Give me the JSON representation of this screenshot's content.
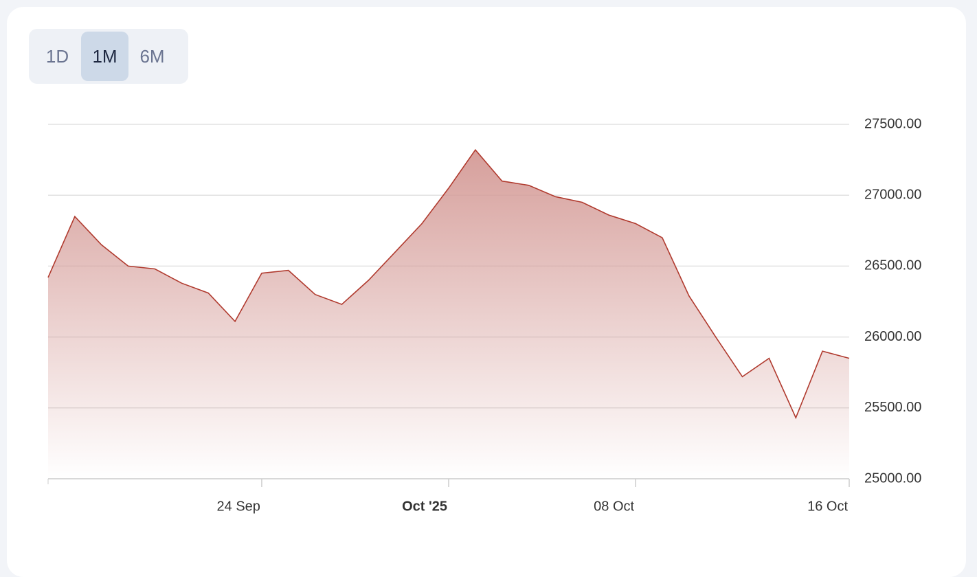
{
  "controls": {
    "options": [
      "1D",
      "1M",
      "6M"
    ],
    "selected": 1
  },
  "chart_data": {
    "type": "area",
    "x": [
      "2025-09-16",
      "2025-09-17",
      "2025-09-18",
      "2025-09-19",
      "2025-09-20",
      "2025-09-21",
      "2025-09-22",
      "2025-09-23",
      "2025-09-24",
      "2025-09-25",
      "2025-09-26",
      "2025-09-27",
      "2025-09-28",
      "2025-09-29",
      "2025-09-30",
      "2025-10-01",
      "2025-10-02",
      "2025-10-03",
      "2025-10-04",
      "2025-10-05",
      "2025-10-06",
      "2025-10-07",
      "2025-10-08",
      "2025-10-09",
      "2025-10-10",
      "2025-10-11",
      "2025-10-12",
      "2025-10-13",
      "2025-10-14",
      "2025-10-15",
      "2025-10-16"
    ],
    "series": [
      {
        "color": "#b03a2e",
        "fill": "#d49a96",
        "values": [
          26420,
          26850,
          26650,
          26500,
          26480,
          26380,
          26310,
          26110,
          26450,
          26470,
          26300,
          26230,
          26400,
          26600,
          26800,
          27050,
          27320,
          27100,
          27070,
          26990,
          26950,
          26860,
          26800,
          26700,
          26290,
          26000,
          25720,
          25850,
          25430,
          25900,
          25850
        ]
      }
    ],
    "xlim": [
      "2025-09-16",
      "2025-10-16"
    ],
    "xticks": [
      {
        "value": "2025-09-24",
        "label": "24 Sep"
      },
      {
        "value": "2025-10-01",
        "label": "Oct '25",
        "bold": true
      },
      {
        "value": "2025-10-08",
        "label": "08 Oct"
      },
      {
        "value": "2025-10-16",
        "label": "16 Oct"
      }
    ],
    "ylim": [
      25000,
      27500
    ],
    "yticks": [
      {
        "value": 25000,
        "label": "25000.00"
      },
      {
        "value": 25500,
        "label": "25500.00"
      },
      {
        "value": 26000,
        "label": "26000.00"
      },
      {
        "value": 26500,
        "label": "26500.00"
      },
      {
        "value": 27000,
        "label": "27000.00"
      },
      {
        "value": 27500,
        "label": "27500.00"
      }
    ],
    "grid": true
  }
}
